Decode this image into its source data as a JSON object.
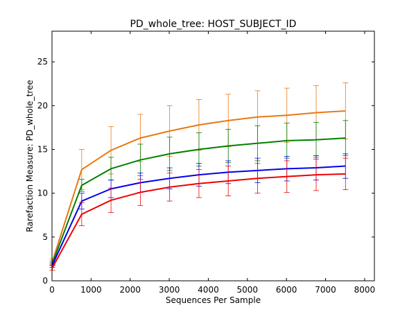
{
  "chart_data": {
    "type": "line",
    "title": "PD_whole_tree: HOST_SUBJECT_ID",
    "xlabel": "Sequences Per Sample",
    "ylabel": "Rarefaction Measure: PD_whole_tree",
    "xlim": [
      0,
      8250
    ],
    "ylim": [
      0,
      28.5
    ],
    "x_ticks": [
      0,
      1000,
      2000,
      3000,
      4000,
      5000,
      6000,
      7000,
      8000
    ],
    "y_ticks": [
      0,
      5,
      10,
      15,
      20,
      25
    ],
    "x_tick_labels": [
      "0",
      "1000",
      "2000",
      "3000",
      "4000",
      "5000",
      "6000",
      "7000",
      "8000"
    ],
    "y_tick_labels": [
      "0",
      "5",
      "10",
      "15",
      "20",
      "25"
    ],
    "grid": false,
    "legend": "none",
    "x": [
      10,
      760,
      1510,
      2260,
      3010,
      3760,
      4510,
      5260,
      6010,
      6760,
      7510
    ],
    "series": [
      {
        "color": "#e87811",
        "values": [
          2.2,
          12.7,
          14.9,
          16.3,
          17.1,
          17.8,
          18.3,
          18.7,
          18.9,
          19.2,
          19.4
        ],
        "errors": [
          0.3,
          2.3,
          2.7,
          2.7,
          2.9,
          2.9,
          3.0,
          3.0,
          3.1,
          3.1,
          3.2
        ]
      },
      {
        "color": "#007f00",
        "values": [
          2.0,
          10.9,
          12.8,
          13.8,
          14.5,
          15.0,
          15.4,
          15.7,
          16.0,
          16.1,
          16.3
        ],
        "errors": [
          0.25,
          0.7,
          1.3,
          1.8,
          1.9,
          1.9,
          1.9,
          2.0,
          2.0,
          2.0,
          2.0
        ]
      },
      {
        "color": "#0000ee",
        "values": [
          1.8,
          9.1,
          10.5,
          11.2,
          11.7,
          12.1,
          12.4,
          12.6,
          12.8,
          12.9,
          13.1
        ],
        "errors": [
          0.25,
          0.9,
          1.0,
          1.1,
          1.2,
          1.3,
          1.3,
          1.4,
          1.4,
          1.4,
          1.4
        ]
      },
      {
        "color": "#ee0000",
        "values": [
          1.5,
          7.6,
          9.2,
          10.1,
          10.7,
          11.1,
          11.4,
          11.7,
          11.9,
          12.1,
          12.2
        ],
        "errors": [
          0.3,
          1.3,
          1.4,
          1.5,
          1.6,
          1.6,
          1.7,
          1.7,
          1.8,
          1.8,
          1.8
        ]
      }
    ]
  }
}
